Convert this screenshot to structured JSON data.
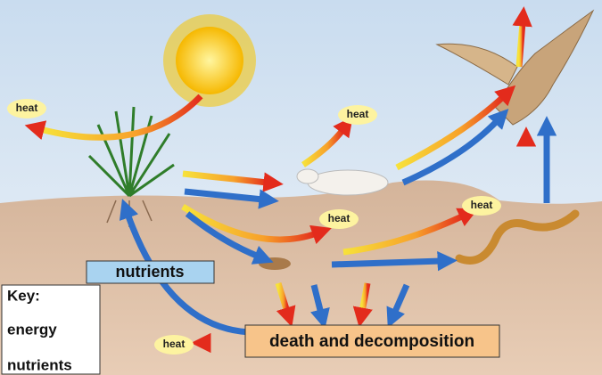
{
  "heat_labels": [
    "heat",
    "heat",
    "heat",
    "heat",
    "heat"
  ],
  "nutrients_label": "nutrients",
  "decomposition_label": "death and decomposition",
  "key": {
    "title": "Key:",
    "items": [
      "energy",
      "nutrients"
    ]
  }
}
